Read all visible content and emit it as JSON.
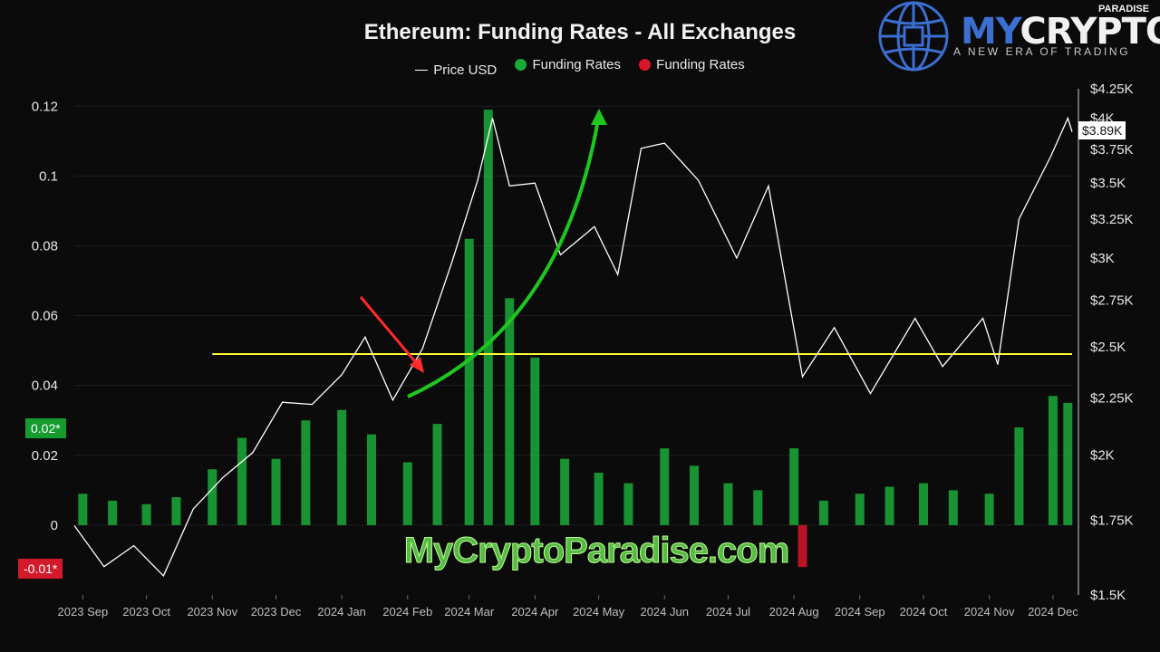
{
  "chart_data": {
    "type": "bar",
    "title": "Ethereum: Funding Rates - All Exchanges",
    "legend": [
      {
        "label": "Price USD",
        "color": "#ffffff",
        "kind": "line"
      },
      {
        "label": "Funding Rates",
        "color": "#1bab39",
        "kind": "dot"
      },
      {
        "label": "Funding Rates",
        "color": "#d9152a",
        "kind": "dot"
      }
    ],
    "x_tick_labels": [
      "2023 Sep",
      "2023 Oct",
      "2023 Nov",
      "2023 Dec",
      "2024 Jan",
      "2024 Feb",
      "2024 Mar",
      "2024 Apr",
      "2024 May",
      "2024 Jun",
      "2024 Jul",
      "2024 Aug",
      "2024 Sep",
      "2024 Oct",
      "2024 Nov",
      "2024 Dec"
    ],
    "x_range": [
      "2023-08-28",
      "2024-12-10"
    ],
    "y_left": {
      "ticks": [
        "0.12",
        "0.1",
        "0.08",
        "0.06",
        "0.04",
        "0.02",
        "0"
      ],
      "tick_values": [
        0.12,
        0.1,
        0.08,
        0.06,
        0.04,
        0.02,
        0
      ],
      "range": [
        -0.02,
        0.125
      ]
    },
    "y_right": {
      "ticks": [
        "$4.25K",
        "$4K",
        "$3.75K",
        "$3.5K",
        "$3.25K",
        "$3K",
        "$2.75K",
        "$2.5K",
        "$2.25K",
        "$2K",
        "$1.75K",
        "$1.5K"
      ],
      "tick_values": [
        4250,
        4000,
        3750,
        3500,
        3250,
        3000,
        2750,
        2500,
        2250,
        2000,
        1750,
        1500
      ],
      "scale": "log",
      "range": [
        1500,
        4250
      ]
    },
    "current_funding_pos": "0.02*",
    "current_funding_neg": "-0.01*",
    "current_price": "$3.89K",
    "threshold_line": {
      "value": 0.049,
      "color": "#ffff33",
      "start": "2023-11-01"
    },
    "funding_rates": [
      [
        "2023-09-01",
        0.009
      ],
      [
        "2023-09-15",
        0.007
      ],
      [
        "2023-10-01",
        0.006
      ],
      [
        "2023-10-15",
        0.008
      ],
      [
        "2023-11-01",
        0.016
      ],
      [
        "2023-11-15",
        0.025
      ],
      [
        "2023-12-01",
        0.019
      ],
      [
        "2023-12-15",
        0.03
      ],
      [
        "2024-01-01",
        0.033
      ],
      [
        "2024-01-15",
        0.026
      ],
      [
        "2024-02-01",
        0.018
      ],
      [
        "2024-02-15",
        0.029
      ],
      [
        "2024-03-01",
        0.082
      ],
      [
        "2024-03-10",
        0.119
      ],
      [
        "2024-03-20",
        0.065
      ],
      [
        "2024-04-01",
        0.048
      ],
      [
        "2024-04-15",
        0.019
      ],
      [
        "2024-05-01",
        0.015
      ],
      [
        "2024-05-15",
        0.012
      ],
      [
        "2024-06-01",
        0.022
      ],
      [
        "2024-06-15",
        0.017
      ],
      [
        "2024-07-01",
        0.012
      ],
      [
        "2024-07-15",
        0.01
      ],
      [
        "2024-08-01",
        0.022
      ],
      [
        "2024-08-05",
        -0.012
      ],
      [
        "2024-08-15",
        0.007
      ],
      [
        "2024-09-01",
        0.009
      ],
      [
        "2024-09-15",
        0.011
      ],
      [
        "2024-10-01",
        0.012
      ],
      [
        "2024-10-15",
        0.01
      ],
      [
        "2024-11-01",
        0.009
      ],
      [
        "2024-11-15",
        0.028
      ],
      [
        "2024-12-01",
        0.037
      ],
      [
        "2024-12-08",
        0.035
      ]
    ],
    "price_usd": [
      [
        "2023-08-28",
        1730
      ],
      [
        "2023-09-11",
        1590
      ],
      [
        "2023-09-25",
        1660
      ],
      [
        "2023-10-09",
        1560
      ],
      [
        "2023-10-23",
        1790
      ],
      [
        "2023-11-06",
        1910
      ],
      [
        "2023-11-20",
        2010
      ],
      [
        "2023-12-04",
        2230
      ],
      [
        "2023-12-18",
        2220
      ],
      [
        "2024-01-01",
        2360
      ],
      [
        "2024-01-12",
        2550
      ],
      [
        "2024-01-25",
        2240
      ],
      [
        "2024-02-08",
        2490
      ],
      [
        "2024-02-22",
        2980
      ],
      [
        "2024-03-05",
        3520
      ],
      [
        "2024-03-12",
        4000
      ],
      [
        "2024-03-20",
        3480
      ],
      [
        "2024-04-01",
        3500
      ],
      [
        "2024-04-13",
        3020
      ],
      [
        "2024-04-29",
        3200
      ],
      [
        "2024-05-10",
        2900
      ],
      [
        "2024-05-21",
        3760
      ],
      [
        "2024-06-01",
        3800
      ],
      [
        "2024-06-17",
        3520
      ],
      [
        "2024-07-05",
        3000
      ],
      [
        "2024-07-20",
        3480
      ],
      [
        "2024-08-05",
        2350
      ],
      [
        "2024-08-20",
        2600
      ],
      [
        "2024-09-06",
        2270
      ],
      [
        "2024-09-27",
        2650
      ],
      [
        "2024-10-10",
        2400
      ],
      [
        "2024-10-29",
        2650
      ],
      [
        "2024-11-05",
        2410
      ],
      [
        "2024-11-15",
        3250
      ],
      [
        "2024-11-30",
        3700
      ],
      [
        "2024-12-08",
        4000
      ],
      [
        "2024-12-10",
        3890
      ]
    ]
  },
  "logo": {
    "brand_prefix": "MY",
    "brand_main": "CRYPTO",
    "brand_sub": "PARADISE",
    "tagline": "A NEW ERA OF TRADING"
  },
  "watermark": "MyCryptoParadise.com"
}
